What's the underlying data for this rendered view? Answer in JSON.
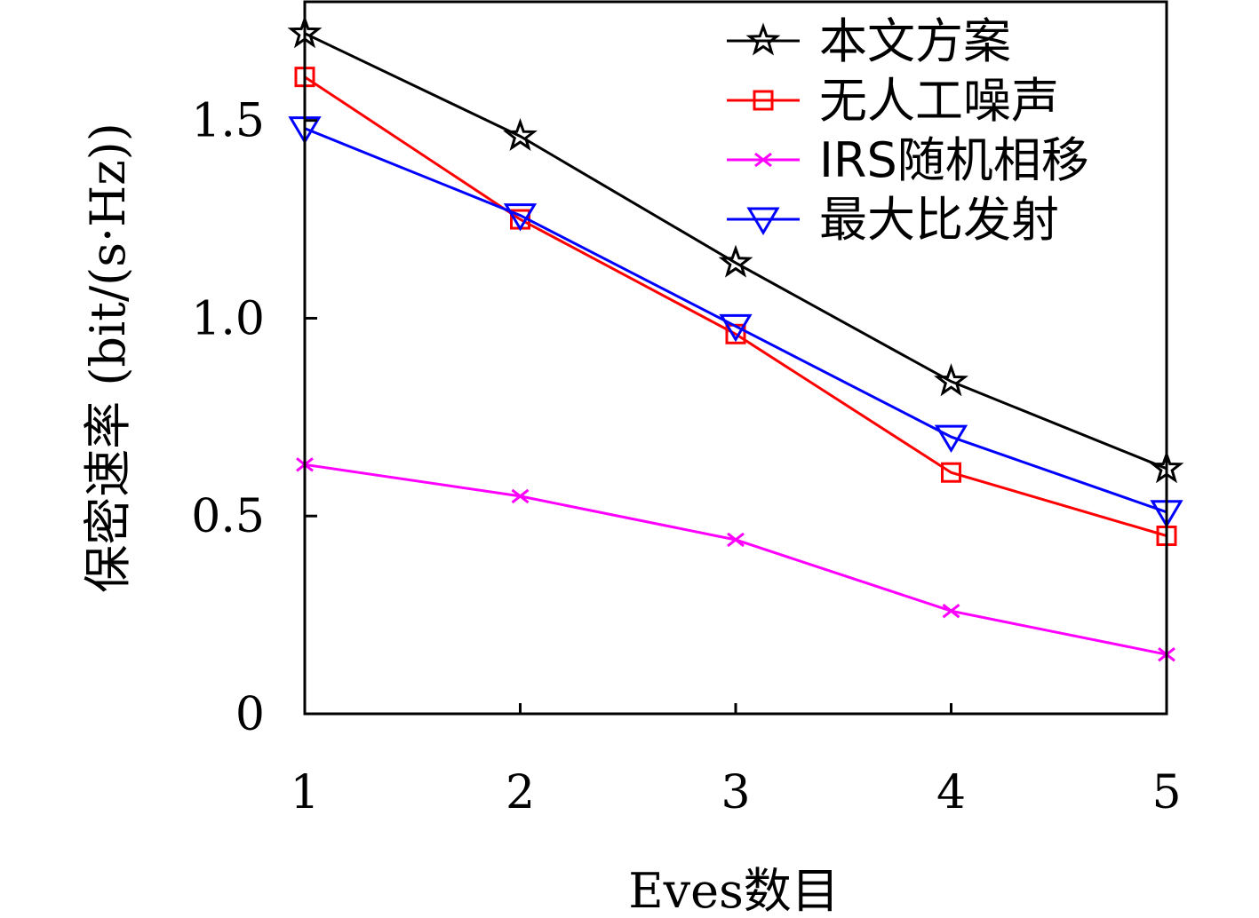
{
  "chart_data": {
    "type": "line",
    "title": "",
    "xlabel": "Eves数目",
    "ylabel": "保密速率 (bit/(s·Hz))",
    "x": [
      1,
      2,
      3,
      4,
      5
    ],
    "x_tick_labels": [
      "1",
      "2",
      "3",
      "4",
      "5"
    ],
    "xlim": [
      1,
      5
    ],
    "y_ticks": [
      0,
      0.5,
      1.0,
      1.5
    ],
    "y_tick_labels": [
      "0",
      "0.5",
      "1.0",
      "1.5"
    ],
    "ylim": [
      0,
      1.8
    ],
    "grid": false,
    "legend_position": "top-right",
    "series": [
      {
        "name": "本文方案",
        "color": "#000000",
        "marker": "star",
        "values": [
          1.72,
          1.46,
          1.14,
          0.84,
          0.62
        ]
      },
      {
        "name": "无人工噪声",
        "color": "#ff0000",
        "marker": "square",
        "values": [
          1.61,
          1.25,
          0.96,
          0.61,
          0.45
        ]
      },
      {
        "name": "IRS随机相移",
        "color": "#ff00ff",
        "marker": "x",
        "values": [
          0.63,
          0.55,
          0.44,
          0.26,
          0.15
        ]
      },
      {
        "name": "最大比发射",
        "color": "#0000ff",
        "marker": "triangle-down",
        "values": [
          1.48,
          1.26,
          0.98,
          0.7,
          0.51
        ]
      }
    ]
  }
}
